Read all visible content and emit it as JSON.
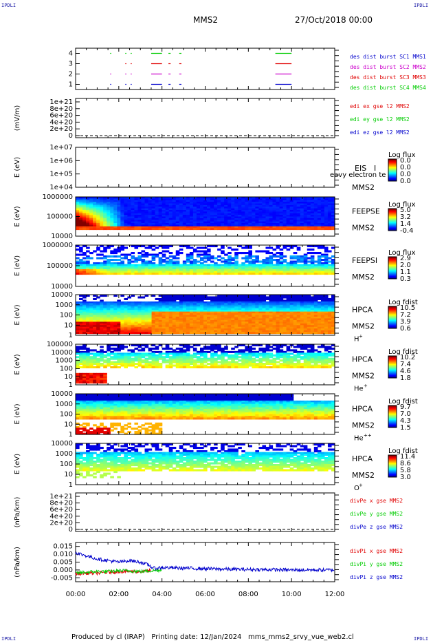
{
  "corner_labels": {
    "tl": "IPDLI",
    "tr": "IPDLI",
    "bl": "IPDLI",
    "br": "IPDLI"
  },
  "header": {
    "spacecraft": "MMS2",
    "date": "27/Oct/2018 00:00"
  },
  "footer": {
    "producer": "Produced by cl (IRAP)",
    "printing": "Printing date: 12/Jan/2024",
    "file": "mms_mms2_srvy_vue_web2.cl"
  },
  "colors": {
    "red": "#e00000",
    "green": "#00cc00",
    "blue": "#0000cc",
    "magenta": "#cc00cc",
    "black": "#000000"
  },
  "chart_data": [
    {
      "type": "line",
      "panel": "burst-intervals",
      "ylabel": "",
      "yticks": [
        "1",
        "2",
        "3",
        "4"
      ],
      "ylim": [
        0.5,
        4.5
      ],
      "right_labels": [
        {
          "text": "des dist burst SC1 MMS1",
          "color": "#0000cc"
        },
        {
          "text": "des dist burst SC2 MMS2",
          "color": "#cc00cc"
        },
        {
          "text": "des dist burst SC3 MMS3",
          "color": "#e00000"
        },
        {
          "text": "des dist burst SC4 MMS4",
          "color": "#00cc00"
        }
      ],
      "series": [
        {
          "level": 4,
          "color": "#00cc00",
          "intervals": [
            [
              1.6,
              1.65
            ],
            [
              2.3,
              2.35
            ],
            [
              2.55,
              2.6
            ],
            [
              3.5,
              4.0
            ],
            [
              4.3,
              4.4
            ],
            [
              4.8,
              4.9
            ],
            [
              9.25,
              10.0
            ]
          ]
        },
        {
          "level": 3,
          "color": "#e00000",
          "intervals": [
            [
              2.3,
              2.35
            ],
            [
              2.55,
              2.6
            ],
            [
              3.5,
              4.0
            ],
            [
              4.3,
              4.4
            ],
            [
              4.8,
              4.9
            ],
            [
              9.25,
              10.0
            ]
          ]
        },
        {
          "level": 2,
          "color": "#cc00cc",
          "intervals": [
            [
              1.6,
              1.65
            ],
            [
              2.3,
              2.35
            ],
            [
              2.55,
              2.6
            ],
            [
              3.5,
              4.0
            ],
            [
              4.3,
              4.4
            ],
            [
              4.8,
              4.9
            ],
            [
              9.25,
              10.0
            ]
          ]
        },
        {
          "level": 1,
          "color": "#0000cc",
          "intervals": [
            [
              1.6,
              1.65
            ],
            [
              2.3,
              2.35
            ],
            [
              2.55,
              2.6
            ],
            [
              3.5,
              4.0
            ],
            [
              4.3,
              4.4
            ],
            [
              4.8,
              4.9
            ],
            [
              9.25,
              10.0
            ]
          ]
        }
      ]
    },
    {
      "type": "line",
      "panel": "edi-e-field",
      "ylabel": "(mV/m)",
      "yticks": [
        "0",
        "2e+20",
        "4e+20",
        "6e+20",
        "8e+20",
        "1e+21"
      ],
      "right_labels": [
        {
          "text": "edi ex gse l2 MMS2",
          "color": "#e00000"
        },
        {
          "text": "edi ey gse l2 MMS2",
          "color": "#00cc00"
        },
        {
          "text": "edi ez gse l2 MMS2",
          "color": "#0000cc"
        }
      ],
      "zero_line": true
    },
    {
      "type": "heatmap",
      "panel": "eis",
      "ylabel": "E (eV)",
      "yticks": [
        "1e+04",
        "1e+05",
        "1e+06",
        "1e+07"
      ],
      "instrument": "EIS",
      "species": "I",
      "overlay_text": "eavy electron te",
      "sc": "MMS2",
      "cbar_title": "Log flux",
      "cbar_ticks": [
        "0.0",
        "0.0",
        "0.0",
        "0.0"
      ],
      "empty": true
    },
    {
      "type": "heatmap",
      "panel": "feepse",
      "ylabel": "E (eV)",
      "yticks": [
        "10000",
        "100000",
        "1000000"
      ],
      "instrument": "FEEPSE",
      "sc": "MMS2",
      "cbar_title": "Log flux",
      "cbar_ticks": [
        "5.0",
        "3.2",
        "1.4",
        "-0.4"
      ]
    },
    {
      "type": "heatmap",
      "panel": "feepsi",
      "ylabel": "E (eV)",
      "yticks": [
        "10000",
        "100000",
        "1000000"
      ],
      "instrument": "FEEPSI",
      "sc": "MMS2",
      "cbar_title": "Log flux",
      "cbar_ticks": [
        "2.9",
        "2.0",
        "1.1",
        "0.3"
      ]
    },
    {
      "type": "heatmap",
      "panel": "hpca-h",
      "ylabel": "E (eV)",
      "yticks": [
        "1",
        "10",
        "100",
        "1000",
        "10000"
      ],
      "instrument": "HPCA",
      "sc": "MMS2",
      "species": "H",
      "charge": "+",
      "cbar_title": "Log fdist",
      "cbar_ticks": [
        "10.5",
        "7.2",
        "3.9",
        "0.6"
      ]
    },
    {
      "type": "heatmap",
      "panel": "hpca-he",
      "ylabel": "E (eV)",
      "yticks": [
        "1",
        "10",
        "100",
        "1000",
        "10000",
        "100000"
      ],
      "instrument": "HPCA",
      "sc": "MMS2",
      "species": "He",
      "charge": "+",
      "cbar_title": "Log fdist",
      "cbar_ticks": [
        "10.2",
        "7.4",
        "4.6",
        "1.8"
      ]
    },
    {
      "type": "heatmap",
      "panel": "hpca-hepp",
      "ylabel": "E (eV)",
      "yticks": [
        "1",
        "10",
        "100",
        "1000",
        "10000"
      ],
      "instrument": "HPCA",
      "sc": "MMS2",
      "species": "He",
      "charge": "++",
      "cbar_title": "Log fdist",
      "cbar_ticks": [
        "9.7",
        "7.0",
        "4.3",
        "1.5"
      ]
    },
    {
      "type": "heatmap",
      "panel": "hpca-o",
      "ylabel": "E (eV)",
      "yticks": [
        "1",
        "10",
        "100",
        "1000",
        "10000"
      ],
      "instrument": "HPCA",
      "sc": "MMS2",
      "species": "O",
      "charge": "+",
      "cbar_title": "Log fdist",
      "cbar_ticks": [
        "11.4",
        "8.6",
        "5.8",
        "3.0"
      ]
    },
    {
      "type": "line",
      "panel": "divpe",
      "ylabel": "(nPa/km)",
      "yticks": [
        "0",
        "2e+20",
        "4e+20",
        "6e+20",
        "8e+20",
        "1e+21"
      ],
      "right_labels": [
        {
          "text": "divPe x gse MMS2",
          "color": "#e00000"
        },
        {
          "text": "divPe y gse MMS2",
          "color": "#00cc00"
        },
        {
          "text": "divPe z gse MMS2",
          "color": "#0000cc"
        }
      ],
      "zero_line": true
    },
    {
      "type": "line",
      "panel": "divpi",
      "ylabel": "(nPa/km)",
      "yticks": [
        "-0.005",
        "0.000",
        "0.005",
        "0.010",
        "0.015"
      ],
      "ylim": [
        -0.0075,
        0.0175
      ],
      "right_labels": [
        {
          "text": "divPi x gse MMS2",
          "color": "#e00000"
        },
        {
          "text": "divPi y gse MMS2",
          "color": "#00cc00"
        },
        {
          "text": "divPi z gse MMS2",
          "color": "#0000cc"
        }
      ],
      "series": [
        {
          "name": "divPi z gse MMS2",
          "color": "#0000cc",
          "x": [
            0,
            0.5,
            1,
            1.5,
            2,
            2.5,
            3,
            3.4,
            3.6,
            4,
            5,
            6,
            7,
            8,
            9,
            10,
            11,
            12
          ],
          "y": [
            0.011,
            0.009,
            0.007,
            0.006,
            0.005,
            0.006,
            0.005,
            0.003,
            0.001,
            0.0015,
            0.0012,
            0.0008,
            0.0005,
            0.0003,
            0.0002,
            0.0,
            0.0,
            0.0
          ]
        },
        {
          "name": "divPi y gse MMS2",
          "color": "#00cc00",
          "x": [
            0,
            0.5,
            1,
            1.5,
            2,
            2.5,
            3,
            3.5,
            4
          ],
          "y": [
            -0.002,
            -0.0015,
            -0.001,
            -0.001,
            -0.0005,
            -0.0005,
            -0.001,
            -0.0005,
            0.0
          ]
        },
        {
          "name": "divPi x gse MMS2",
          "color": "#e00000",
          "x": [
            0,
            0.5,
            1,
            1.5,
            2,
            2.5,
            3,
            3.5
          ],
          "y": [
            -0.0025,
            -0.002,
            -0.002,
            -0.0015,
            -0.001,
            -0.001,
            -0.001,
            -0.0005
          ]
        }
      ]
    }
  ],
  "xaxis": {
    "ticks": [
      "00:00",
      "02:00",
      "04:00",
      "06:00",
      "08:00",
      "10:00",
      "12:00"
    ],
    "xlim": [
      0,
      12
    ]
  }
}
